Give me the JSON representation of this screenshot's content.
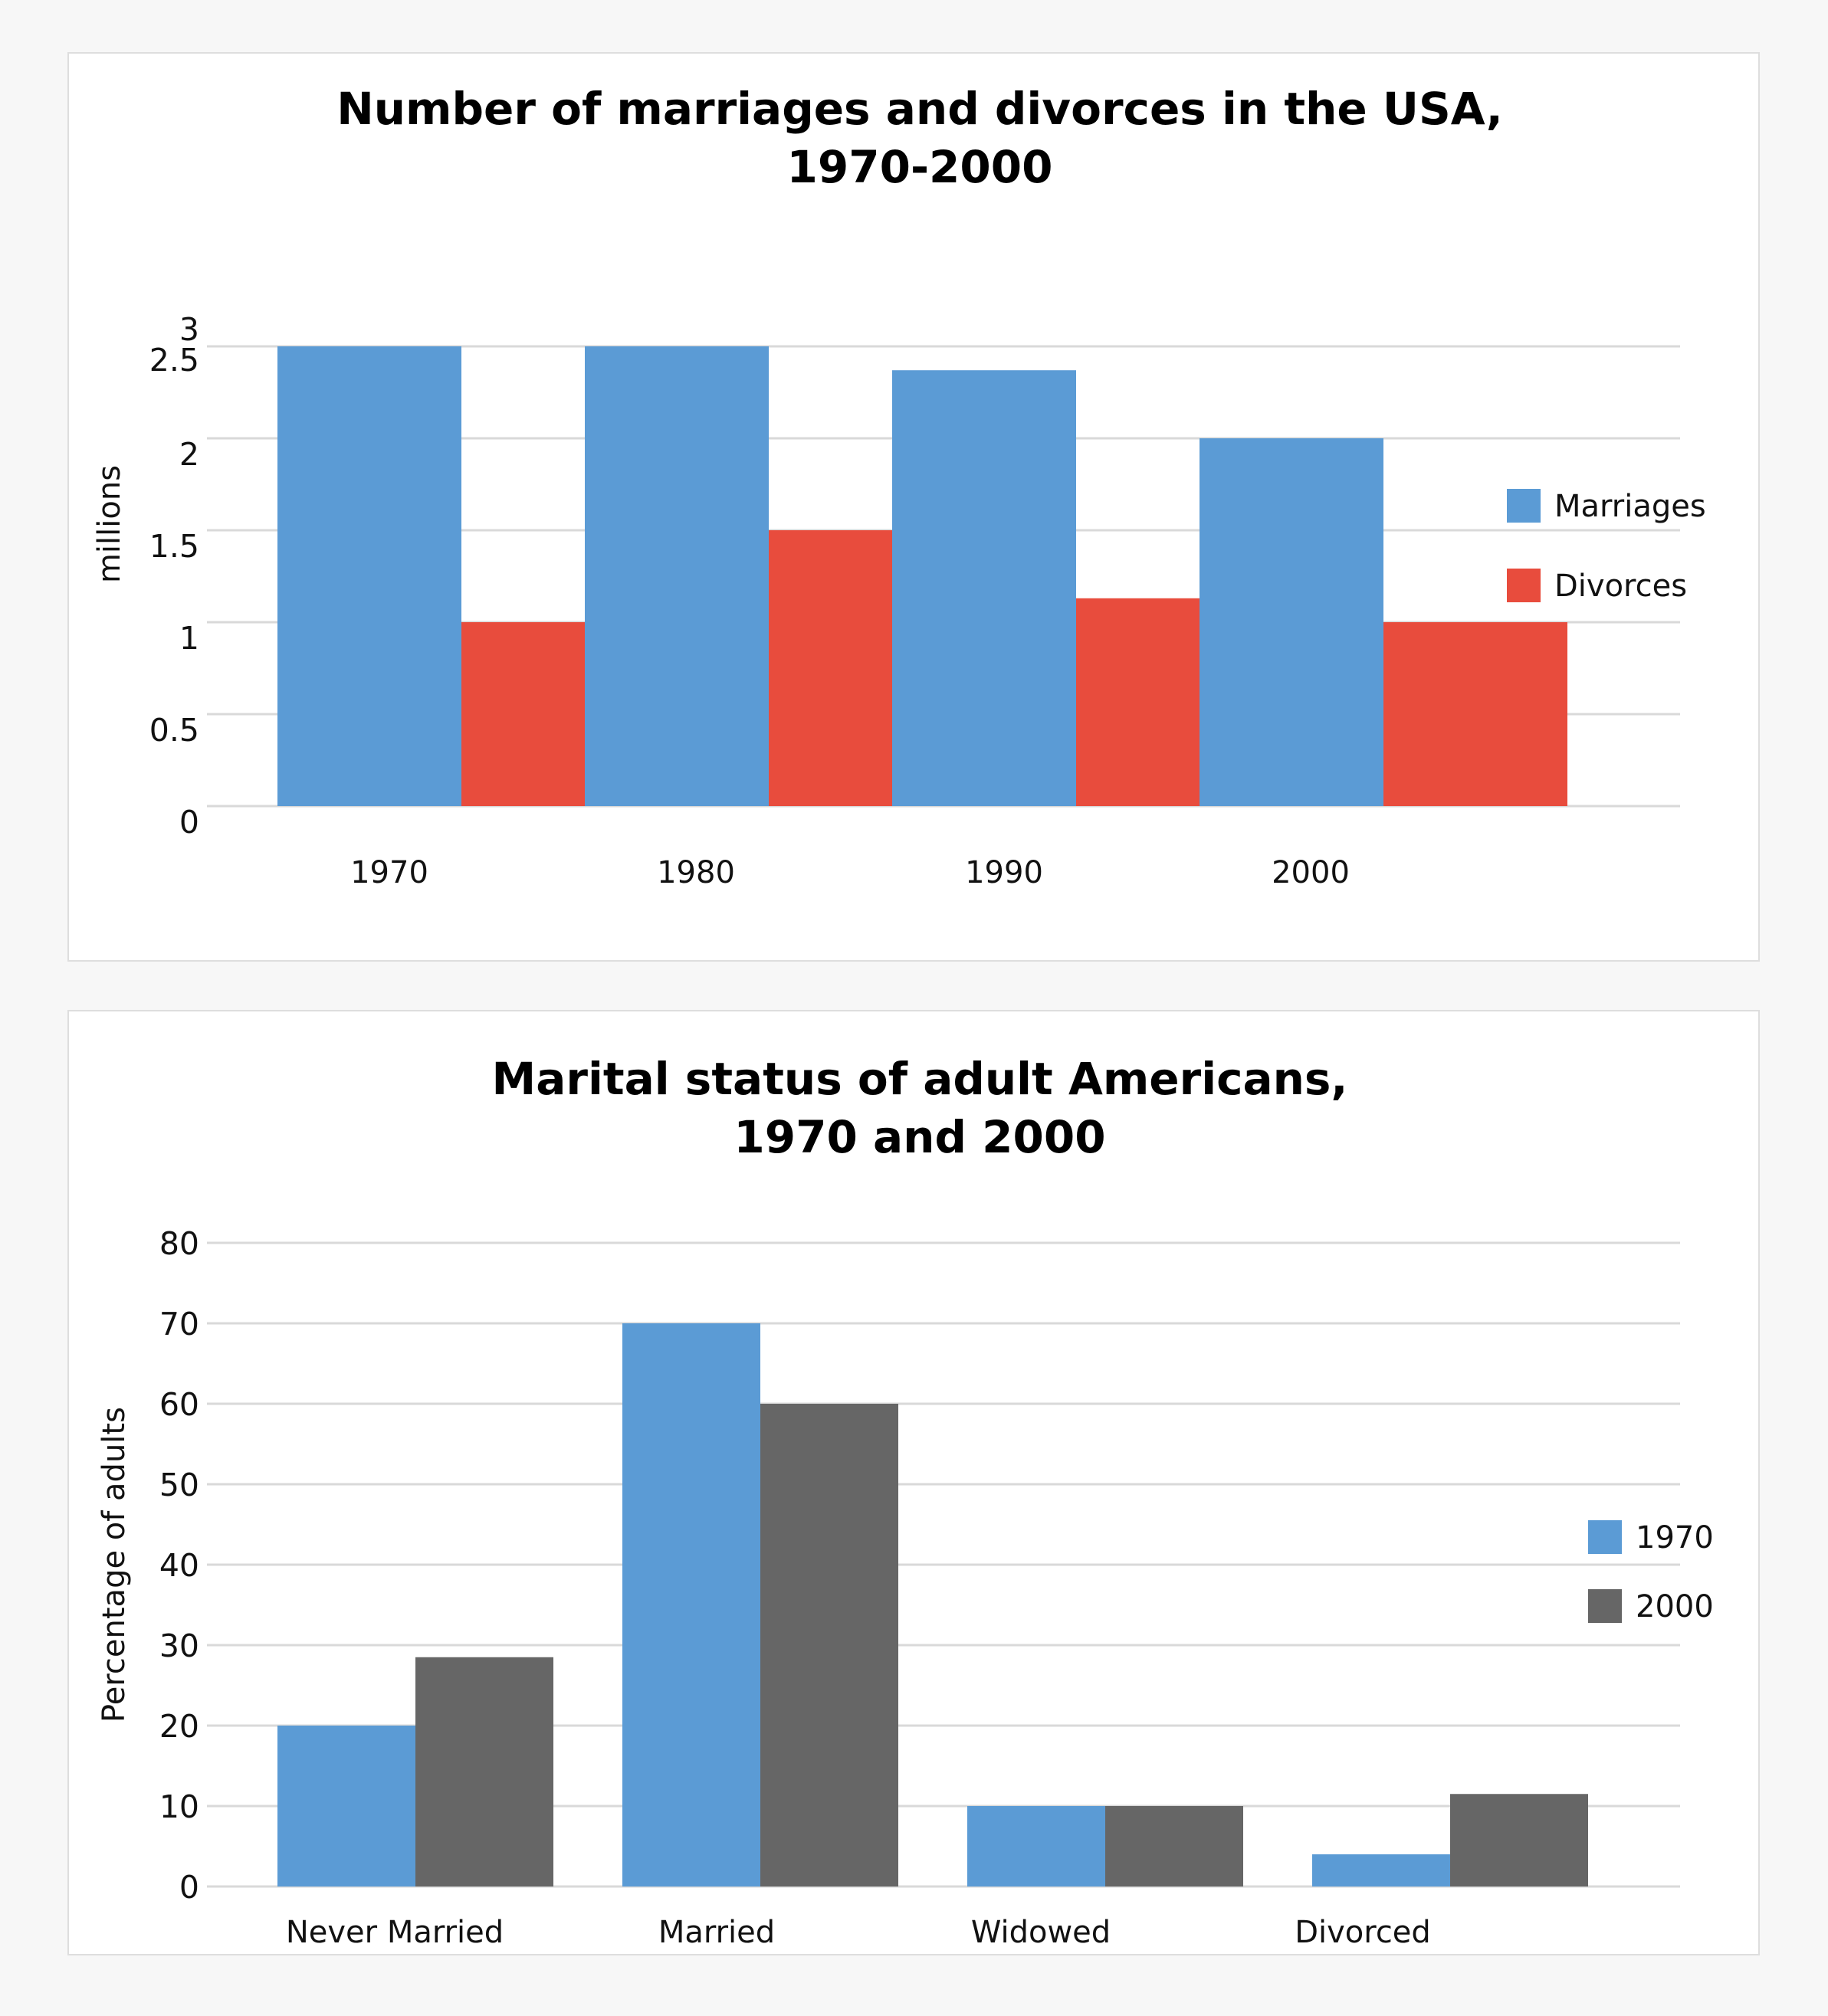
{
  "chart_data": [
    {
      "type": "bar",
      "title_lines": [
        "Number of marriages and divorces in the USA,",
        "1970-2000"
      ],
      "xlabel": "",
      "ylabel": "millions",
      "categories": [
        "1970",
        "1980",
        "1990",
        "2000"
      ],
      "series": [
        {
          "name": "Marriages",
          "color": "#5b9bd5",
          "values": [
            2.5,
            2.5,
            2.37,
            2.0
          ]
        },
        {
          "name": "Divorces",
          "color": "#e84c3d",
          "values": [
            1.0,
            1.5,
            1.13,
            1.0
          ]
        }
      ],
      "ylim": [
        0,
        2.5
      ],
      "yticks": [
        "0",
        "0.5",
        "1",
        "1.5",
        "2",
        "2.5",
        "3"
      ],
      "grid": true,
      "legend": "right"
    },
    {
      "type": "bar",
      "title_lines": [
        "Marital status of adult Americans,",
        "1970 and 2000"
      ],
      "xlabel": "",
      "ylabel": "Percentage of adults",
      "categories": [
        "Never Married",
        "Married",
        "Widowed",
        "Divorced"
      ],
      "series": [
        {
          "name": "1970",
          "color": "#5b9bd5",
          "values": [
            20,
            70,
            10,
            4
          ]
        },
        {
          "name": "2000",
          "color": "#666666",
          "values": [
            28.5,
            60,
            10,
            11.5
          ]
        }
      ],
      "ylim": [
        0,
        80
      ],
      "yticks": [
        "0",
        "10",
        "20",
        "30",
        "40",
        "50",
        "60",
        "70",
        "80"
      ],
      "grid": true,
      "legend": "right"
    }
  ]
}
